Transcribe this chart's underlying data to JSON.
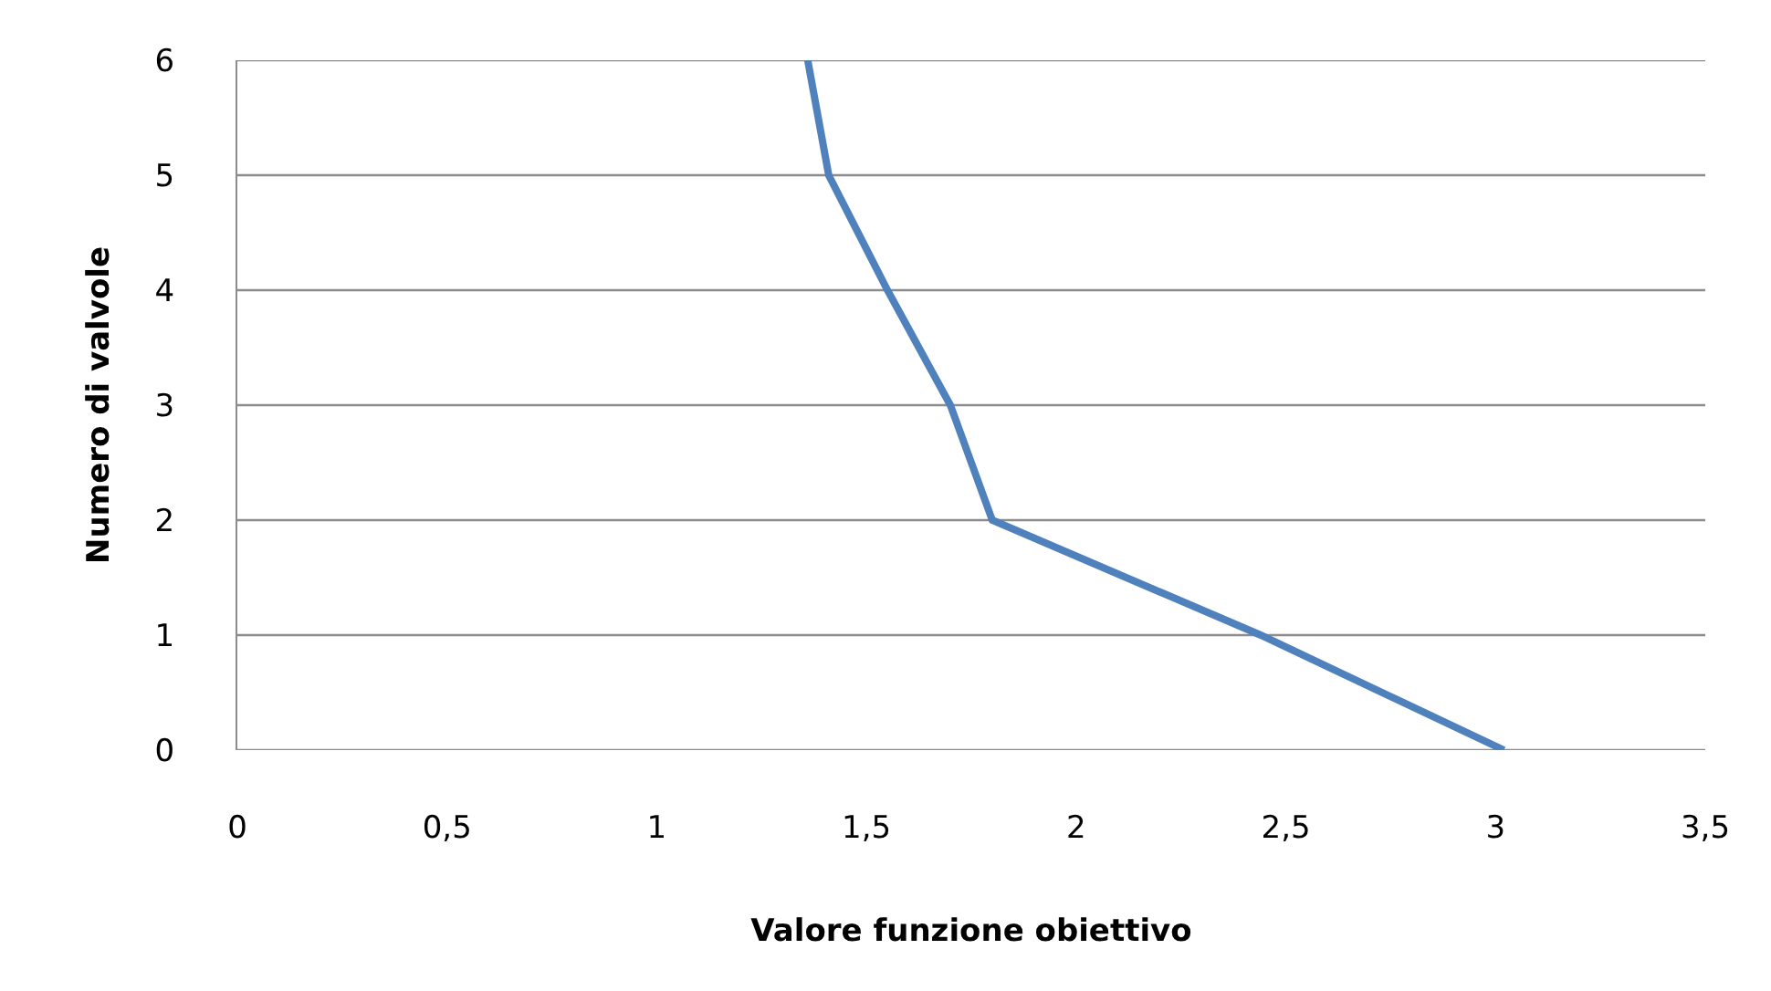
{
  "chart_data": {
    "type": "line",
    "xlabel": "Valore funzione obiettivo",
    "ylabel": "Numero di valvole",
    "x": [
      3.02,
      2.44,
      1.8,
      1.7,
      1.55,
      1.41,
      1.36
    ],
    "series": [
      {
        "color": "#4f81bd",
        "values": [
          0,
          1,
          2,
          3,
          4,
          5,
          6
        ]
      }
    ],
    "xlim": [
      0,
      3.5
    ],
    "xticks": [
      0,
      {
        "value": 0.5,
        "label": "0,5"
      },
      1,
      {
        "value": 1.5,
        "label": "1,5"
      },
      2,
      {
        "value": 2.5,
        "label": "2,5"
      },
      3,
      {
        "value": 3.5,
        "label": "3,5"
      }
    ],
    "ylim": [
      0,
      6
    ],
    "yticks": [
      0,
      1,
      2,
      3,
      4,
      5,
      6
    ],
    "grid": "y",
    "marker": "none",
    "line_style": "solid"
  }
}
